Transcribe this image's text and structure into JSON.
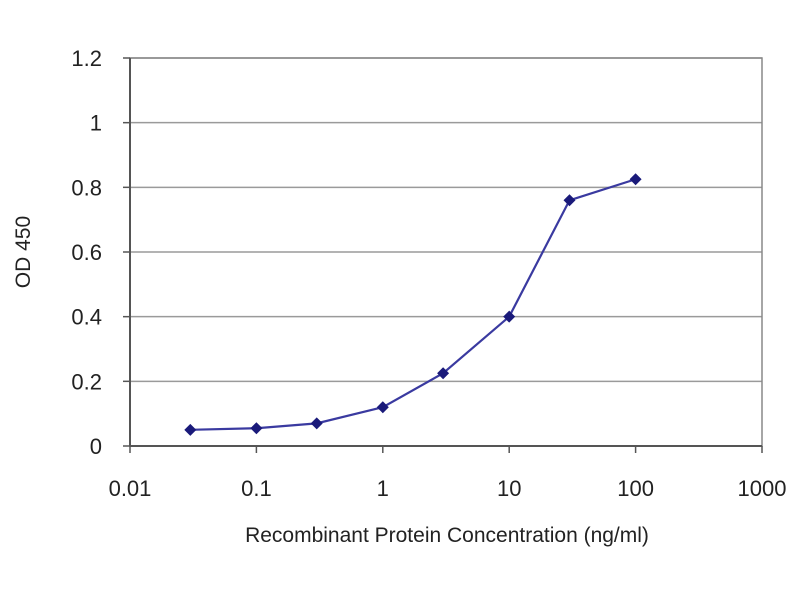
{
  "chart_data": {
    "type": "line",
    "title": "",
    "xlabel": "Recombinant Protein Concentration (ng/ml)",
    "ylabel": "OD 450",
    "xscale": "log",
    "xlim": [
      0.01,
      1000
    ],
    "ylim": [
      0,
      1.2
    ],
    "x_ticks": [
      0.01,
      0.1,
      1,
      10,
      100,
      1000
    ],
    "x_tick_labels": [
      "0.01",
      "0.1",
      "1",
      "10",
      "100",
      "1000"
    ],
    "y_ticks": [
      0,
      0.2,
      0.4,
      0.6,
      0.8,
      1,
      1.2
    ],
    "y_tick_labels": [
      "0",
      "0.2",
      "0.4",
      "0.6",
      "0.8",
      "1",
      "1.2"
    ],
    "grid": "horizontal",
    "legend": "none",
    "series": [
      {
        "x": [
          0.03,
          0.1,
          0.3,
          1,
          3,
          10,
          30,
          100
        ],
        "y": [
          0.05,
          0.055,
          0.07,
          0.12,
          0.225,
          0.4,
          0.76,
          0.825
        ],
        "color": "#3a3aa0",
        "marker": "diamond",
        "marker_color": "#1a1a7a"
      }
    ],
    "colors": {
      "grid": "#9a9a9a",
      "axis": "#555555",
      "frame": "#888888"
    }
  }
}
